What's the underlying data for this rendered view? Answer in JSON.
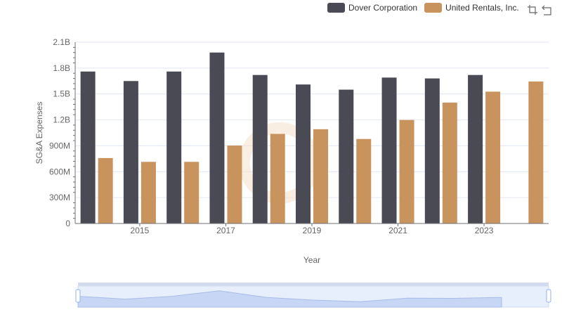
{
  "legend": [
    {
      "name": "Dover Corporation",
      "color": "#4a4a55"
    },
    {
      "name": "United Rentals, Inc.",
      "color": "#c9935d"
    }
  ],
  "toolbox": {
    "restore_icon": "zoom-restore-icon",
    "save_icon": "save-image-icon"
  },
  "chart_data": {
    "type": "bar",
    "categories": [
      "2014",
      "2015",
      "2016",
      "2017",
      "2018",
      "2019",
      "2020",
      "2021",
      "2022",
      "2023",
      "2024"
    ],
    "x_tick_labels": [
      "2015",
      "2017",
      "2019",
      "2021",
      "2023"
    ],
    "series": [
      {
        "name": "Dover Corporation",
        "color": "#4a4a55",
        "values": [
          1.76,
          1.65,
          1.76,
          1.98,
          1.72,
          1.61,
          1.55,
          1.69,
          1.68,
          1.72,
          null
        ]
      },
      {
        "name": "United Rentals, Inc.",
        "color": "#c9935d",
        "values": [
          0.758,
          0.714,
          0.714,
          0.903,
          1.038,
          1.092,
          0.979,
          1.199,
          1.4,
          1.527,
          1.645
        ]
      }
    ],
    "xlabel": "Year",
    "ylabel": "SG&A Expenses",
    "ylim": [
      0,
      2.1
    ],
    "y_ticks": [
      0,
      0.3,
      0.6,
      0.9,
      1.2,
      1.5,
      1.8,
      2.1
    ],
    "y_tick_labels": [
      "0",
      "300M",
      "600M",
      "900M",
      "1.2B",
      "1.5B",
      "1.8B",
      "2.1B"
    ],
    "grid": true,
    "legend_position": "top-right",
    "zoom_slider": true
  }
}
